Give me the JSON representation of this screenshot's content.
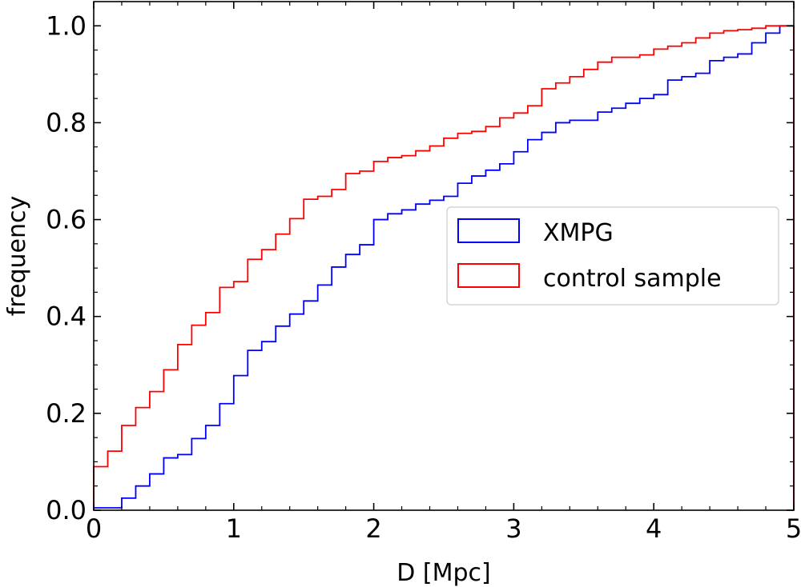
{
  "chart_data": {
    "type": "line",
    "subtype": "cumulative-step-histogram",
    "title": "",
    "xlabel": "D [Mpc]",
    "ylabel": "frequency",
    "xlim": [
      0,
      5
    ],
    "ylim": [
      0,
      1.05
    ],
    "xticks": [
      0,
      1,
      2,
      3,
      4,
      5
    ],
    "xtick_labels": [
      "0",
      "1",
      "2",
      "3",
      "4",
      "5"
    ],
    "yticks": [
      0,
      0.2,
      0.4,
      0.6,
      0.8,
      1.0
    ],
    "ytick_labels": [
      "0.0",
      "0.2",
      "0.4",
      "0.6",
      "0.8",
      "1.0"
    ],
    "grid": false,
    "legend_position": "center-right",
    "bin_edges": [
      0,
      0.1,
      0.2,
      0.3,
      0.4,
      0.5,
      0.6,
      0.7,
      0.8,
      0.9,
      1.0,
      1.1,
      1.2,
      1.3,
      1.4,
      1.5,
      1.6,
      1.7,
      1.8,
      1.9,
      2.0,
      2.1,
      2.2,
      2.3,
      2.4,
      2.5,
      2.6,
      2.7,
      2.8,
      2.9,
      3.0,
      3.1,
      3.2,
      3.3,
      3.4,
      3.5,
      3.6,
      3.7,
      3.8,
      3.9,
      4.0,
      4.1,
      4.2,
      4.3,
      4.4,
      4.5,
      4.6,
      4.7,
      4.8,
      4.9,
      5.0
    ],
    "series": [
      {
        "name": "XMPG",
        "color": "#0000ff",
        "values": [
          0.005,
          0.005,
          0.025,
          0.05,
          0.075,
          0.108,
          0.115,
          0.148,
          0.175,
          0.22,
          0.278,
          0.33,
          0.348,
          0.38,
          0.405,
          0.432,
          0.465,
          0.502,
          0.528,
          0.548,
          0.6,
          0.612,
          0.62,
          0.632,
          0.64,
          0.648,
          0.675,
          0.69,
          0.702,
          0.715,
          0.74,
          0.765,
          0.78,
          0.8,
          0.805,
          0.805,
          0.822,
          0.83,
          0.84,
          0.85,
          0.858,
          0.888,
          0.895,
          0.902,
          0.928,
          0.935,
          0.942,
          0.965,
          0.985,
          1.0
        ]
      },
      {
        "name": "control sample",
        "color": "#ff0000",
        "values": [
          0.09,
          0.122,
          0.175,
          0.212,
          0.245,
          0.29,
          0.342,
          0.382,
          0.408,
          0.46,
          0.472,
          0.518,
          0.538,
          0.57,
          0.602,
          0.642,
          0.648,
          0.662,
          0.695,
          0.7,
          0.72,
          0.728,
          0.732,
          0.742,
          0.752,
          0.768,
          0.778,
          0.782,
          0.792,
          0.81,
          0.82,
          0.835,
          0.87,
          0.882,
          0.895,
          0.91,
          0.925,
          0.935,
          0.935,
          0.94,
          0.952,
          0.958,
          0.965,
          0.975,
          0.985,
          0.99,
          0.992,
          0.995,
          1.0,
          1.0
        ]
      }
    ]
  }
}
